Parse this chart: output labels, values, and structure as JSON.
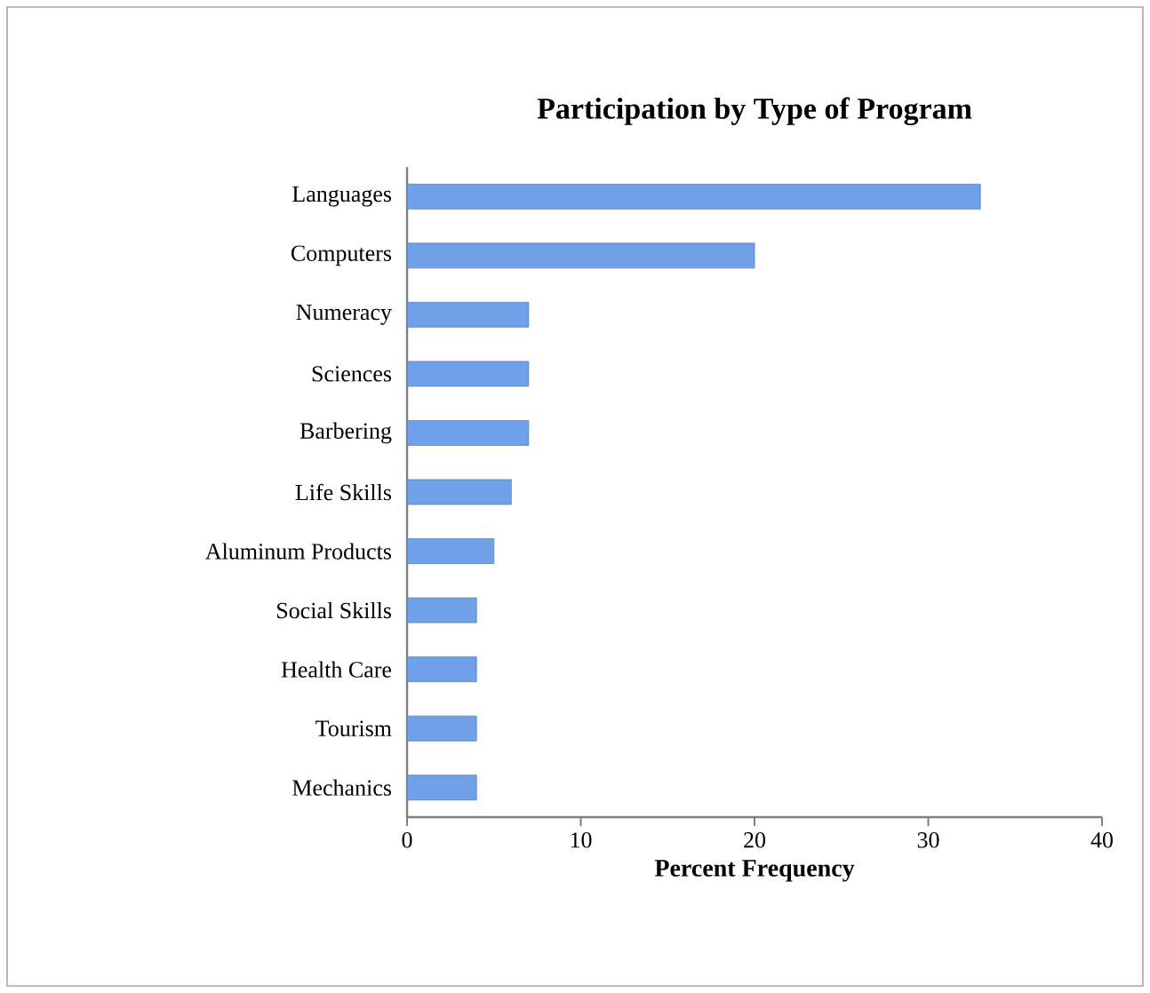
{
  "chart_data": {
    "type": "bar",
    "orientation": "horizontal",
    "title": "Participation by Type of Program",
    "xlabel": "Percent Frequency",
    "categories": [
      "Languages",
      "Computers",
      "Numeracy",
      "Sciences",
      "Barbering",
      "Life Skills",
      "Aluminum Products",
      "Social Skills",
      "Health Care",
      "Tourism",
      "Mechanics"
    ],
    "values": [
      33,
      20,
      7,
      7,
      7,
      6,
      5,
      4,
      4,
      4,
      4
    ],
    "color": "#6fa0e8",
    "xlim": [
      0,
      40
    ],
    "xticks": [
      0,
      10,
      20,
      30,
      40
    ],
    "grid": false
  }
}
